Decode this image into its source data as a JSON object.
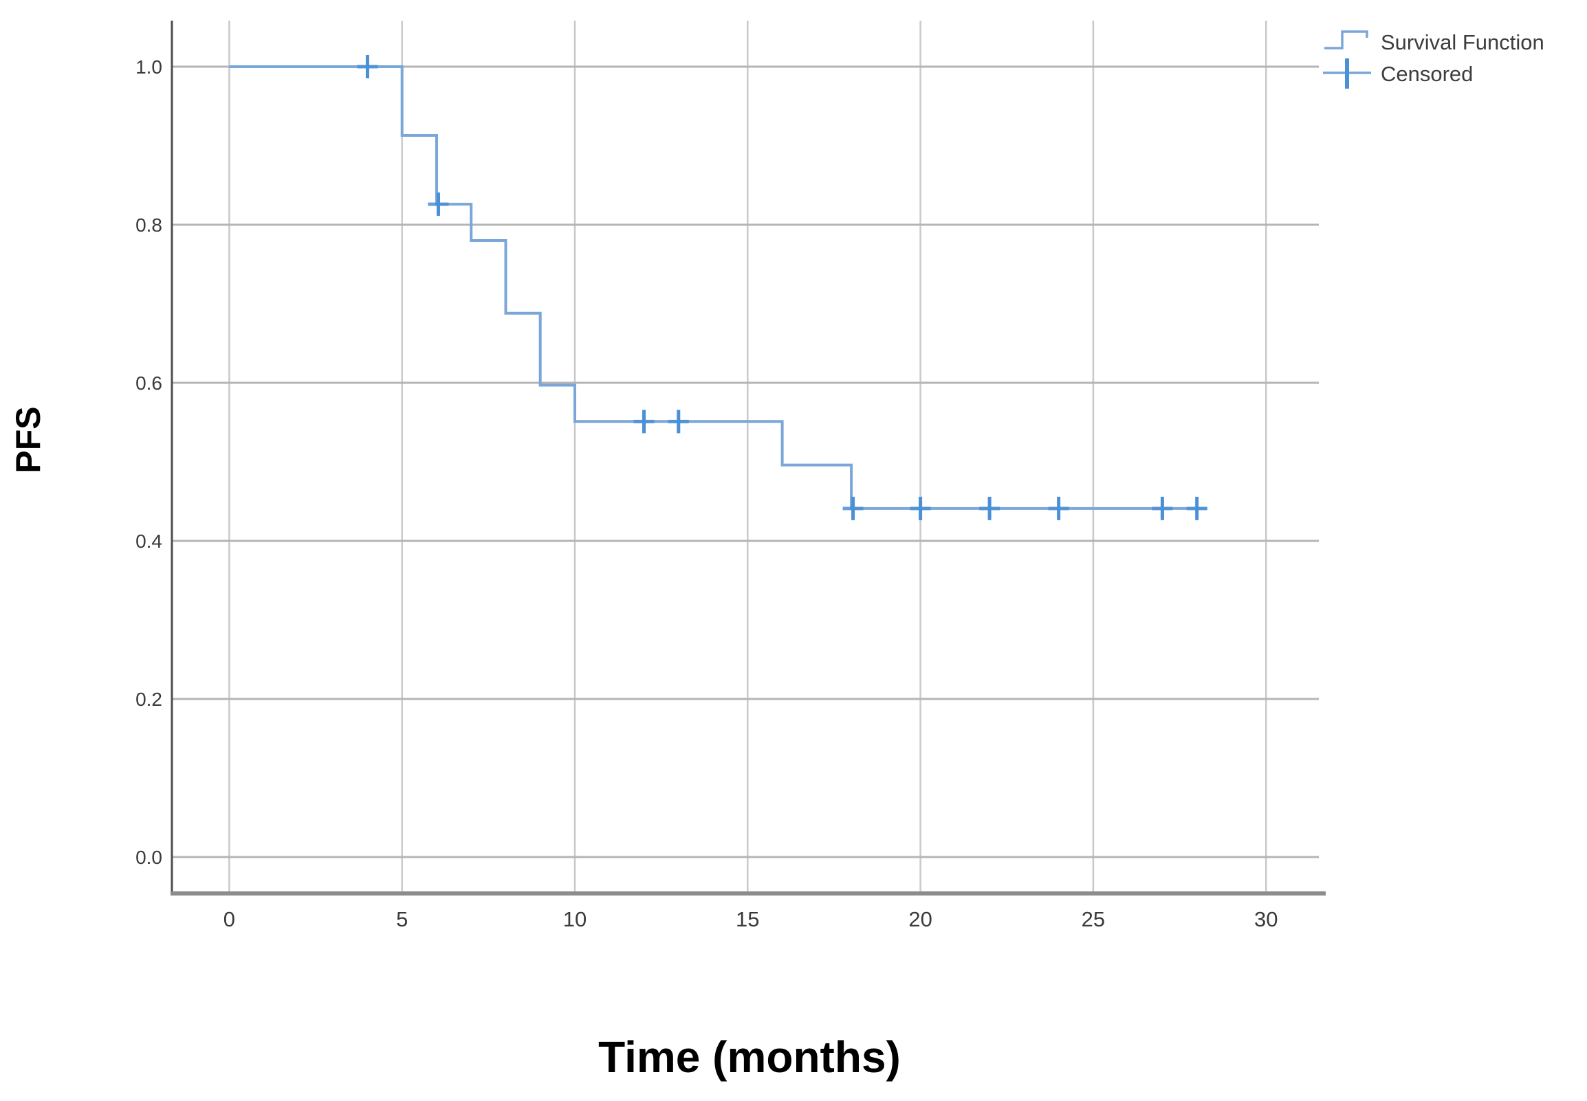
{
  "figure": {
    "type_description": "Kaplan-Meier progression-free survival plot",
    "background": "#ffffff"
  },
  "colors": {
    "survival_line": "#7aa6d8",
    "censor_mark": "#4a90d6",
    "gridline_vertical": "#c9c9c9",
    "gridline_horizontal": "#b5b5b5",
    "y_axis_line": "#4d4d4d",
    "x_axis_line": "#8c8c8c",
    "tick_text": "#3a3a3a",
    "axis_title_text": "#000000",
    "legend_text": "#3d3d3d"
  },
  "legend": {
    "entries": [
      {
        "label": "Survival Function",
        "marker": "step-line"
      },
      {
        "label": "Censored",
        "marker": "plus-cross"
      }
    ]
  },
  "chart_data": {
    "type": "line",
    "subtype": "kaplan-meier-step",
    "title": "",
    "xlabel": "Time (months)",
    "ylabel": "PFS",
    "xticks": [
      0,
      5,
      10,
      15,
      20,
      25,
      30
    ],
    "yticks": [
      0.0,
      0.2,
      0.4,
      0.6,
      0.8,
      1.0
    ],
    "xlim": [
      -1.65,
      31.7
    ],
    "ylim": [
      -0.09,
      1.06
    ],
    "grid": true,
    "legend_position": "top-right",
    "series": [
      {
        "name": "Survival Function",
        "color": "#7aa6d8",
        "step_points": [
          [
            0,
            1.0
          ],
          [
            5,
            1.0
          ],
          [
            5,
            0.913
          ],
          [
            6,
            0.913
          ],
          [
            6,
            0.826
          ],
          [
            7,
            0.826
          ],
          [
            7,
            0.78
          ],
          [
            8,
            0.78
          ],
          [
            8,
            0.688
          ],
          [
            9,
            0.688
          ],
          [
            9,
            0.597
          ],
          [
            10,
            0.597
          ],
          [
            10,
            0.551
          ],
          [
            16,
            0.551
          ],
          [
            16,
            0.496
          ],
          [
            18,
            0.496
          ],
          [
            18,
            0.441
          ],
          [
            28.3,
            0.441
          ]
        ],
        "event_times": [
          5,
          6,
          7,
          8,
          9,
          10,
          16,
          18
        ],
        "survival_after_event": [
          0.913,
          0.826,
          0.78,
          0.688,
          0.597,
          0.551,
          0.496,
          0.441
        ]
      }
    ],
    "censored": {
      "name": "Censored",
      "color": "#4a90d6",
      "points": [
        [
          4,
          1.0
        ],
        [
          6.05,
          0.826
        ],
        [
          12,
          0.551
        ],
        [
          13,
          0.551
        ],
        [
          18.05,
          0.441
        ],
        [
          20,
          0.441
        ],
        [
          22,
          0.441
        ],
        [
          24,
          0.441
        ],
        [
          27,
          0.441
        ],
        [
          28,
          0.441
        ]
      ]
    }
  }
}
